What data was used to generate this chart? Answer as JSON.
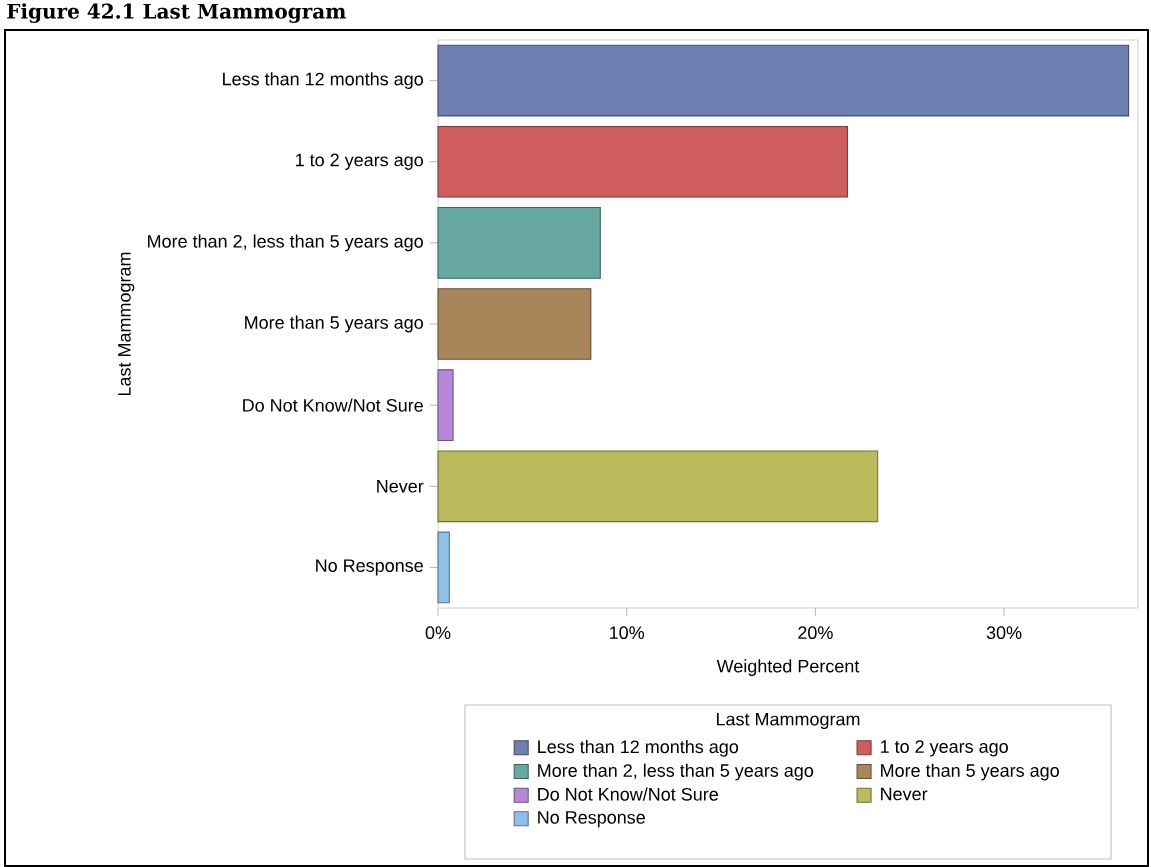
{
  "chart_data": {
    "type": "bar",
    "orientation": "horizontal",
    "title": "Figure 42.1 Last Mammogram",
    "xlabel": "Weighted Percent",
    "ylabel": "Last Mammogram",
    "legend_title": "Last Mammogram",
    "legend": "bottom",
    "categories": [
      "Less than 12 months ago",
      "1 to 2 years ago",
      "More than 2, less than 5 years ago",
      "More than 5 years ago",
      "Do Not Know/Not Sure",
      "Never",
      "No Response"
    ],
    "series": [
      {
        "name": "Less than 12 months ago",
        "color": "#6f7fb3",
        "values": [
          36.6,
          null,
          null,
          null,
          null,
          null,
          null
        ]
      },
      {
        "name": "1 to 2 years ago",
        "color": "#d05d5d",
        "values": [
          null,
          21.7,
          null,
          null,
          null,
          null,
          null
        ]
      },
      {
        "name": "More than 2, less than 5 years ago",
        "color": "#66a8a0",
        "values": [
          null,
          null,
          8.6,
          null,
          null,
          null,
          null
        ]
      },
      {
        "name": "More than 5 years ago",
        "color": "#a9855a",
        "values": [
          null,
          null,
          null,
          8.1,
          null,
          null,
          null
        ]
      },
      {
        "name": "Do Not Know/Not Sure",
        "color": "#b888d8",
        "values": [
          null,
          null,
          null,
          null,
          0.8,
          null,
          null
        ]
      },
      {
        "name": "Never",
        "color": "#bbbb5c",
        "values": [
          null,
          null,
          null,
          null,
          null,
          23.3,
          null
        ]
      },
      {
        "name": "No Response",
        "color": "#8fc0ea",
        "values": [
          null,
          null,
          null,
          null,
          null,
          null,
          0.6
        ]
      }
    ],
    "xlim": [
      0,
      37.1
    ],
    "xticks": [
      {
        "value": 0,
        "label": "0%"
      },
      {
        "value": 10,
        "label": "10%"
      },
      {
        "value": 20,
        "label": "20%"
      },
      {
        "value": 30,
        "label": "30%"
      }
    ]
  }
}
